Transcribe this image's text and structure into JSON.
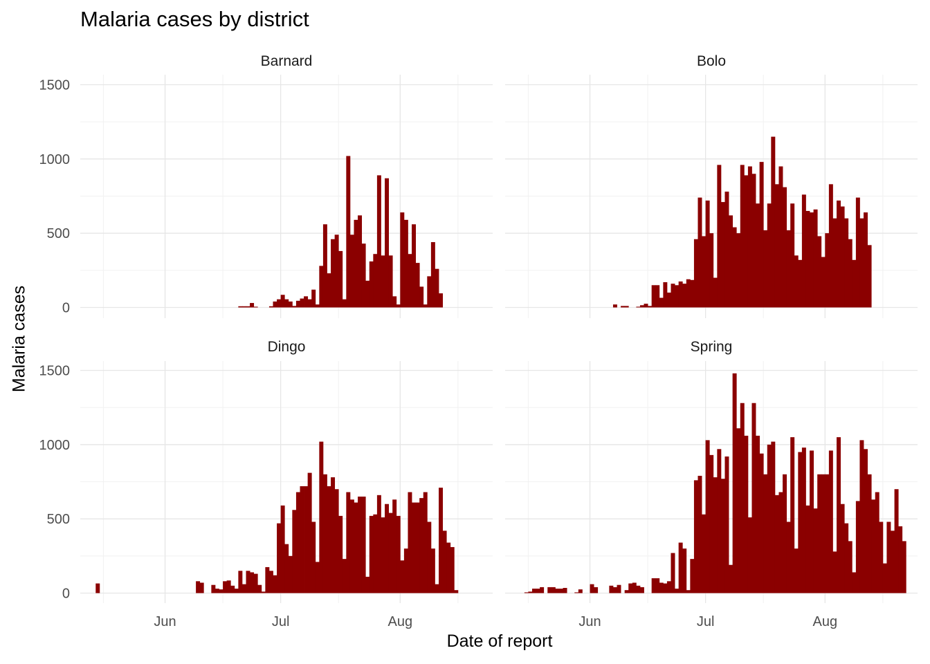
{
  "chart_data": {
    "type": "bar",
    "title": "Malaria cases by district",
    "xlabel": "Date of report",
    "ylabel": "Malaria cases",
    "bar_color": "#8B0000",
    "grid": true,
    "ylim": [
      0,
      1500
    ],
    "yticks": [
      0,
      500,
      1000,
      1500
    ],
    "xlim": [
      "2020-05-10",
      "2020-08-25"
    ],
    "xticks": [
      {
        "date": "2020-06-01",
        "label": "Jun"
      },
      {
        "date": "2020-07-01",
        "label": "Jul"
      },
      {
        "date": "2020-08-01",
        "label": "Aug"
      }
    ],
    "panels": [
      {
        "name": "Barnard",
        "start_date": "2020-06-20",
        "values": [
          8,
          8,
          8,
          30,
          5,
          0,
          0,
          0,
          8,
          40,
          55,
          85,
          55,
          40,
          10,
          45,
          60,
          75,
          55,
          120,
          20,
          280,
          560,
          230,
          460,
          490,
          380,
          55,
          1020,
          490,
          590,
          620,
          430,
          180,
          310,
          360,
          890,
          350,
          870,
          350,
          75,
          20,
          640,
          590,
          360,
          560,
          300,
          140,
          20,
          210,
          440,
          260,
          95
        ]
      },
      {
        "name": "Bolo",
        "start_date": "2020-06-05",
        "values": [
          0,
          0,
          20,
          0,
          10,
          10,
          0,
          0,
          5,
          15,
          25,
          10,
          150,
          150,
          65,
          170,
          100,
          160,
          150,
          175,
          160,
          190,
          185,
          460,
          740,
          480,
          720,
          500,
          200,
          960,
          710,
          780,
          620,
          540,
          500,
          960,
          890,
          950,
          900,
          700,
          980,
          520,
          700,
          1150,
          830,
          950,
          810,
          520,
          700,
          350,
          320,
          760,
          650,
          640,
          660,
          480,
          340,
          500,
          830,
          600,
          720,
          680,
          600,
          460,
          320,
          740,
          600,
          640,
          420
        ]
      },
      {
        "name": "Dingo",
        "start_date": "2020-05-14",
        "values": [
          65,
          0,
          0,
          0,
          0,
          0,
          0,
          0,
          0,
          0,
          0,
          0,
          0,
          0,
          0,
          0,
          0,
          0,
          0,
          0,
          0,
          0,
          0,
          0,
          0,
          0,
          80,
          70,
          0,
          0,
          55,
          30,
          25,
          80,
          85,
          50,
          30,
          150,
          60,
          150,
          140,
          130,
          55,
          10,
          175,
          150,
          120,
          470,
          590,
          330,
          250,
          560,
          680,
          720,
          720,
          810,
          480,
          210,
          1020,
          800,
          720,
          780,
          700,
          520,
          230,
          680,
          630,
          610,
          650,
          650,
          110,
          520,
          530,
          660,
          510,
          600,
          540,
          630,
          520,
          220,
          300,
          680,
          610,
          610,
          640,
          680,
          480,
          300,
          60,
          710,
          420,
          340,
          310,
          20
        ]
      },
      {
        "name": "Spring",
        "start_date": "2020-05-15",
        "values": [
          5,
          10,
          30,
          30,
          40,
          0,
          40,
          40,
          30,
          30,
          35,
          0,
          0,
          5,
          25,
          0,
          0,
          60,
          40,
          0,
          0,
          0,
          50,
          40,
          55,
          0,
          20,
          65,
          70,
          50,
          40,
          0,
          0,
          100,
          100,
          70,
          65,
          80,
          270,
          30,
          340,
          300,
          20,
          230,
          760,
          790,
          530,
          1030,
          930,
          780,
          970,
          770,
          920,
          190,
          1480,
          1110,
          1280,
          1060,
          510,
          1280,
          1060,
          940,
          800,
          1000,
          1020,
          660,
          680,
          800,
          480,
          1050,
          300,
          950,
          980,
          590,
          960,
          570,
          800,
          800,
          800,
          960,
          280,
          1050,
          600,
          470,
          350,
          140,
          620,
          1030,
          970,
          800,
          630,
          680,
          480,
          200,
          480,
          420,
          700,
          450,
          350
        ]
      }
    ]
  }
}
